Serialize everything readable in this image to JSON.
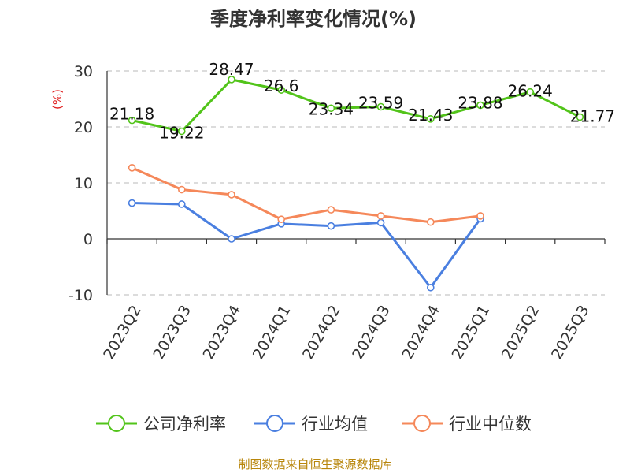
{
  "colors": {
    "company": "#52c41a",
    "industry_avg": "#4a7fe0",
    "industry_median": "#f5885a",
    "unit": "#e02020",
    "source": "#b8860b",
    "grid": "#c8c8c8",
    "axis": "#333333"
  },
  "chart_data": {
    "type": "line",
    "title": "季度净利率变化情况(%)",
    "ylabel": "(%)",
    "xlabel": "",
    "ylim": [
      -10,
      30
    ],
    "yticks": [
      30,
      20,
      10,
      0,
      -10
    ],
    "grid": true,
    "legend_position": "bottom",
    "categories": [
      "2023Q2",
      "2023Q3",
      "2023Q4",
      "2024Q1",
      "2024Q2",
      "2024Q3",
      "2024Q4",
      "2025Q1",
      "2025Q2",
      "2025Q3"
    ],
    "series": [
      {
        "name": "公司净利率",
        "color_key": "company",
        "values": [
          21.18,
          19.22,
          28.47,
          26.6,
          23.34,
          23.59,
          21.43,
          23.88,
          26.24,
          21.77
        ],
        "labels": [
          "21.18",
          "19.22",
          "28.47",
          "26.6",
          "23.34",
          "23.59",
          "21.43",
          "23.88",
          "26.24",
          "21.77"
        ]
      },
      {
        "name": "行业均值",
        "color_key": "industry_avg",
        "values": [
          6.4,
          6.2,
          0.0,
          2.7,
          2.3,
          2.9,
          -8.7,
          3.6,
          null,
          null
        ]
      },
      {
        "name": "行业中位数",
        "color_key": "industry_median",
        "values": [
          12.7,
          8.8,
          7.9,
          3.5,
          5.2,
          4.1,
          3.0,
          4.1,
          null,
          null
        ]
      }
    ]
  },
  "source": "制图数据来自恒生聚源数据库"
}
